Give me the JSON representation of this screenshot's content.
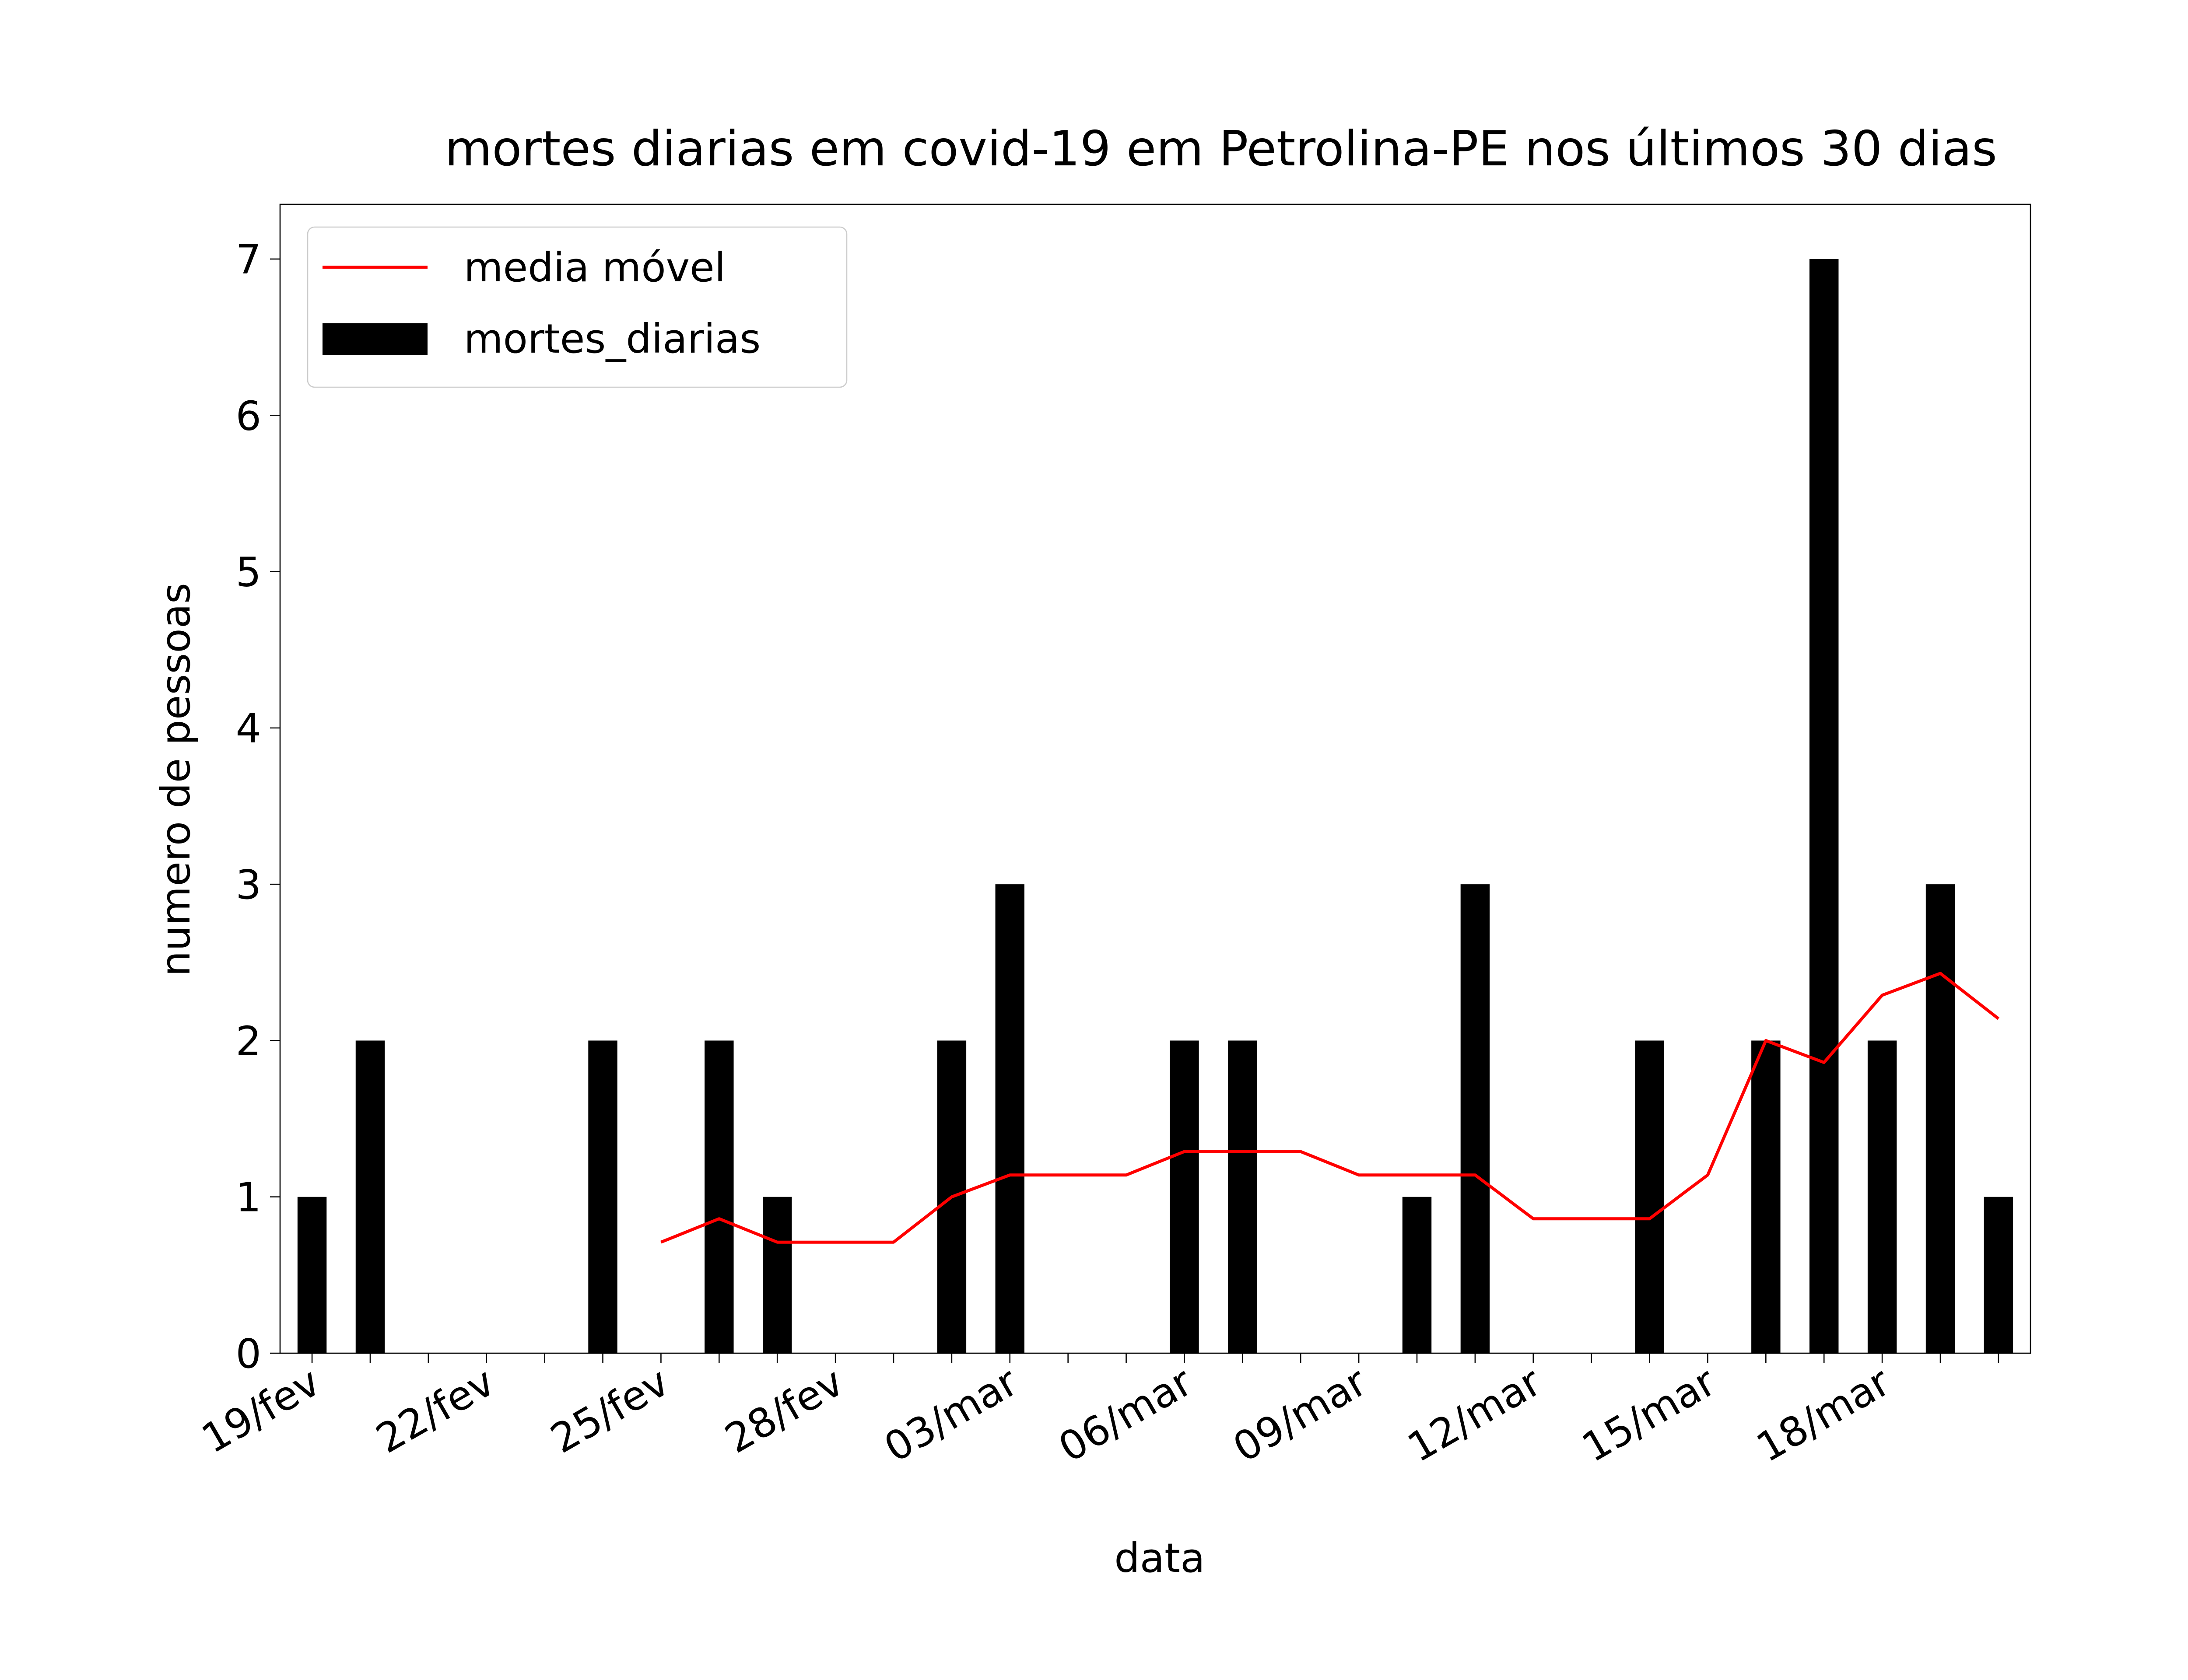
{
  "chart_data": {
    "type": "bar",
    "title": "mortes diarias em covid-19 em Petrolina-PE nos últimos 30 dias",
    "xlabel": "data",
    "ylabel": "numero de pessoas",
    "ylim": [
      0,
      7.35
    ],
    "yticks": [
      0,
      1,
      2,
      3,
      4,
      5,
      6,
      7
    ],
    "grid": false,
    "legend_position": "top-left",
    "categories": [
      "19/fev",
      "20/fev",
      "21/fev",
      "22/fev",
      "23/fev",
      "24/fev",
      "25/fev",
      "26/fev",
      "27/fev",
      "28/fev",
      "01/mar",
      "02/mar",
      "03/mar",
      "04/mar",
      "05/mar",
      "06/mar",
      "07/mar",
      "08/mar",
      "09/mar",
      "10/mar",
      "11/mar",
      "12/mar",
      "13/mar",
      "14/mar",
      "15/mar",
      "16/mar",
      "17/mar",
      "18/mar",
      "19/mar",
      "20/mar"
    ],
    "xtick_labels": [
      "19/fev",
      "22/fev",
      "25/fev",
      "28/fev",
      "03/mar",
      "06/mar",
      "09/mar",
      "12/mar",
      "15/mar",
      "18/mar"
    ],
    "series": [
      {
        "name": "mortes_diarias",
        "kind": "bar",
        "color": "#000000",
        "values": [
          1,
          2,
          0,
          0,
          0,
          2,
          0,
          2,
          1,
          0,
          0,
          2,
          3,
          0,
          0,
          2,
          2,
          0,
          0,
          1,
          3,
          0,
          0,
          2,
          0,
          2,
          7,
          2,
          3,
          1
        ]
      },
      {
        "name": "media móvel",
        "kind": "line",
        "color": "#ff0000",
        "values": [
          null,
          null,
          null,
          null,
          null,
          null,
          0.71,
          0.86,
          0.71,
          0.71,
          0.71,
          1.0,
          1.14,
          1.14,
          1.14,
          1.29,
          1.29,
          1.29,
          1.14,
          1.14,
          1.14,
          0.86,
          0.86,
          0.86,
          1.14,
          2.0,
          1.86,
          2.29,
          2.43,
          2.14
        ]
      }
    ]
  }
}
